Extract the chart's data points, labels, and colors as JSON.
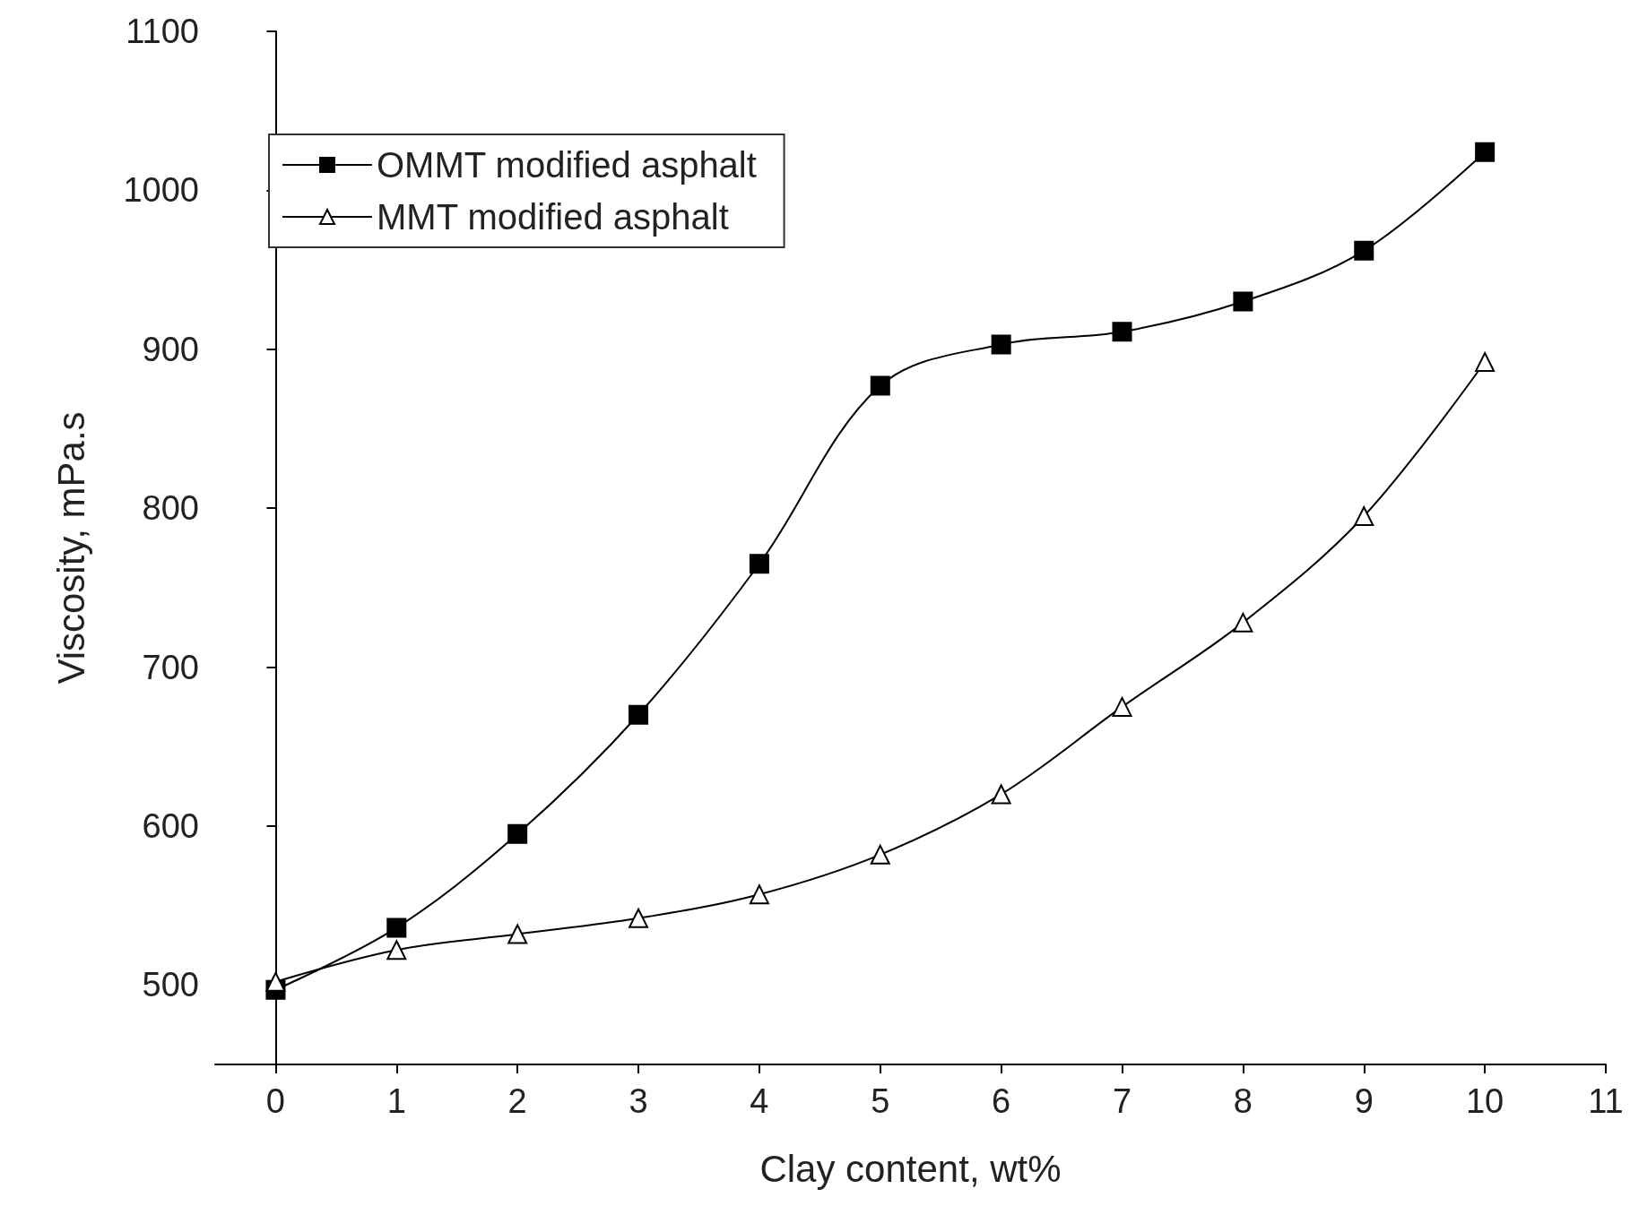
{
  "chart_data": {
    "type": "line",
    "xlabel": "Clay content, wt%",
    "ylabel": "Viscosity, mPa.s",
    "x": [
      0,
      1,
      2,
      3,
      4,
      5,
      6,
      7,
      8,
      9,
      10
    ],
    "series": [
      {
        "name": "OMMT modified asphalt",
        "color": "#000000",
        "marker": "square",
        "values": [
          497,
          536,
          595,
          670,
          765,
          877,
          903,
          911,
          930,
          962,
          1024
        ]
      },
      {
        "name": "MMT modified asphalt",
        "color": "#000000",
        "marker": "triangle",
        "values": [
          502,
          522,
          532,
          542,
          557,
          582,
          620,
          675,
          728,
          795,
          892
        ]
      }
    ],
    "xlim": [
      -0.5,
      11
    ],
    "xticks": [
      0,
      1,
      2,
      3,
      4,
      5,
      6,
      7,
      8,
      9,
      10,
      11
    ],
    "ylim": [
      450,
      1100
    ],
    "yticks": [
      500,
      600,
      700,
      800,
      900,
      1000,
      1100
    ],
    "grid": false,
    "legend": "top left",
    "line_style": "solid"
  }
}
